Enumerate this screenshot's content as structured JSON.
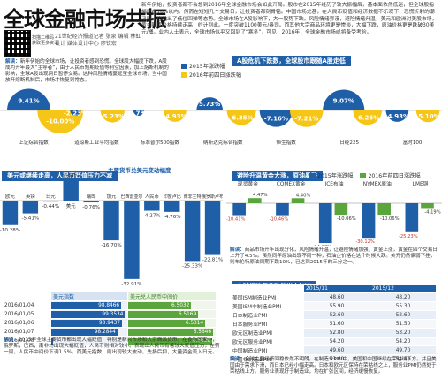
{
  "header": {
    "title": "全球金融市场共振",
    "credit_lines": [
      "21世纪经济报道记者 张泉 编辑 林虹",
      "设计 媒体设计中心 廖钦宏"
    ],
    "qr_caption": [
      "扫描二维码",
      "获取更多资讯"
    ],
    "intro": "新年伊始，投资者都不会想到2016年全球金融市场会如此开局。股市在2015年经历了较大振幅后，基本面依然低迷，但全球股指幅度在10%以内。然而在短短几个交易日，让投资者都刻骨铭。中国市场尤甚，在人民币贬值和经济数据不乐观下，恐慌折射的潮汛时，也结出了低位回弹等态势。全球市场在A股影响下，大一股势下跌。风险情绪弥漫，避险情绪升温，美元和欧洲对美股市场，黄金期货价格持续走高，约计到此。一度突破1100美元/盎司。而其他大宗商品环境更是惨淡，大幅下跌，原油价格更是跌破30美元/桶。业内人士表示，全球市场似乎又回到了“寒冬”，可见，2016年，全球金融市场或将备受考验。"
  },
  "section1": {
    "banner": "A股危机下跌数，全球股市跟随A股走低",
    "note_label": "解读：",
    "note": "新年伊始的全球市场，让投资者感到恐慌。全球股大幅度下跌，A股成为开年最大“主导者”，由于人民币短期贬值等利空因素，加上熔断机制的影响，全球A股出现两日暂停交易。这种风险情绪蔓延至全球市场，当中国放开熔断机制后，市场才恢复到常态。",
    "legend": [
      "2015年涨跌幅",
      "2016年前四日涨跌幅"
    ],
    "colors": {
      "y2015": "#1e5fa8",
      "y2016": "#f5c518"
    },
    "chart_data": {
      "type": "bar",
      "categories": [
        "上证综合指数",
        "道琼斯工业平均指数",
        "标准普尔500指数",
        "纳斯达克综合指数",
        "恒生指数",
        "日经225",
        "富时100"
      ],
      "series": [
        {
          "name": "2015年涨跌幅",
          "values": [
            9.41,
            -2.23,
            -0.73,
            5.73,
            -7.16,
            9.07,
            -4.93
          ]
        },
        {
          "name": "2016年前四日涨跌幅",
          "values": [
            -10.0,
            -5.23,
            -4.93,
            -6.35,
            -7.21,
            -6.25,
            -5.1
          ]
        }
      ],
      "labels": [
        "9.41%",
        "-10.00%",
        "-2.23%",
        "-5.23%",
        "-0.73%",
        "-4.93%",
        "5.73%",
        "-6.35%",
        "-7.16%",
        "-7.21%",
        "9.07%",
        "-6.25%",
        "-4.93%",
        "-5.10%"
      ]
    }
  },
  "section2": {
    "banner": "美元或继续走高，人民币贬值压力不减",
    "subtitle": "主要货币兑美元变动幅度",
    "note_label": "解读：",
    "note": "2015年全球主要货币都出现大幅贬值，特别是新兴市场和大宗商品货币。在食物国家中，俄罗斯，巴西，南非均出现大幅贬值，人民币则相对较小。表现出人民币有着较大贬值压力，在第一周，人民币中间价下调1.5%。而美元指数，则出现较大波动，先扬后抑，大量资金流入日元。",
    "colors": {
      "bar": "#1e5fa8"
    },
    "chart_data": {
      "type": "bar",
      "title": "主要货币兑美元变动幅度",
      "categories": [
        "欧元",
        "英镑",
        "日元",
        "美元",
        "瑞郎",
        "加元",
        "巴西雷亚尔",
        "人民币",
        "印度卢比",
        "南非兰特",
        "俄罗斯卢布"
      ],
      "values": [
        -10.28,
        -5.41,
        -0.44,
        9.34,
        -0.76,
        -16.7,
        -32.91,
        -4.27,
        -4.76,
        -25.33,
        -22.81
      ],
      "labels": [
        "-10.28%",
        "-5.41%",
        "-0.44%",
        "9.34%",
        "-0.76%",
        "-16.70%",
        "-32.91%",
        "-4.27%",
        "-4.76%",
        "-25.33%",
        "-22.81%"
      ]
    },
    "table": {
      "headers": [
        "",
        "美元指数",
        "美元兑人民币中间价"
      ],
      "rows": [
        {
          "date": "2016/01/04",
          "usd_index": "98.8466",
          "cny": "6.5032",
          "usd_frac": 0.92,
          "cny_frac": 0.72
        },
        {
          "date": "2016/01/05",
          "usd_index": "99.3534",
          "cny": "6.5169",
          "usd_frac": 0.97,
          "cny_frac": 0.8
        },
        {
          "date": "2016/01/06",
          "usd_index": "98.9437",
          "cny": "6.5314",
          "usd_frac": 0.93,
          "cny_frac": 0.88
        },
        {
          "date": "2016/01/07",
          "usd_index": "98.2844",
          "cny": "6.5646",
          "usd_frac": 0.87,
          "cny_frac": 0.97
        },
        {
          "date": "2016/01/08",
          "usd_index": "",
          "cny": "6.5636",
          "usd_frac": 0.0,
          "cny_frac": 0.96
        }
      ]
    }
  },
  "section3": {
    "banner": "避险升温黄金大涨，原油暴跌",
    "note_label": "解读：",
    "note": "商品市场开年出现分化，风险情绪升温，让避险情绪加强，黄金上涨，黄金在四个交易日上升了4.5%。虽然同年原油出现不同一种，石油企价格在这个时候大跌。美元仍然偏弱下挫，则布伦特原油同期下跌10%，已达到2015年的三分之一。",
    "legend": [
      "2015年涨跌幅",
      "2016年前四日涨跌幅"
    ],
    "colors": {
      "y2015": "#1e5fa8",
      "y2016": "#5aa53c"
    },
    "chart_data": {
      "type": "bar",
      "categories": [
        "现货黄金",
        "COMEX黄金",
        "ICE布油",
        "NYMEX原油",
        "LME铜"
      ],
      "series": [
        {
          "name": "2015年涨跌幅",
          "values": [
            -10.41,
            -10.46,
            -34.67,
            -30.12,
            -25.23
          ]
        },
        {
          "name": "2016年前四日涨跌幅",
          "values": [
            4.47,
            4.4,
            -10.06,
            -10.06,
            -4.19
          ]
        }
      ],
      "labels": [
        "-10.41%",
        "4.47%",
        "-10.46%",
        "4.40%",
        "-34.67%",
        "-10.06%",
        "-30.12%",
        "-10.06%",
        "-25.23%",
        "-4.19%"
      ]
    }
  },
  "section4": {
    "banner": "全球经济复苏动能尚未加速",
    "table": {
      "headers": [
        "",
        "2015/11",
        "2015/12"
      ],
      "rows": [
        {
          "label": "美国ISM制造业PMI",
          "a": "48.60",
          "b": "48.20"
        },
        {
          "label": "美国ISM非制造业PMI",
          "a": "55.90",
          "b": "55.30"
        },
        {
          "label": "日本制造业PMI",
          "a": "52.60",
          "b": "52.60"
        },
        {
          "label": "日本服务业PMI",
          "a": "51.60",
          "b": "51.50"
        },
        {
          "label": "欧元区制造业PMI",
          "a": "52.80",
          "b": "53.20"
        },
        {
          "label": "欧元区服务业PMI",
          "a": "54.20",
          "b": "54.20"
        },
        {
          "label": "中国制造业PMI",
          "a": "49.60",
          "b": "49.70"
        },
        {
          "label": "中国非制造业PMI",
          "a": "53.60",
          "b": "54.40"
        }
      ]
    },
    "note_label": "解读：",
    "note": "全球主要经济回稳依然不明朗。在制造业PMI中，美国和中国继续在荣枯线下方。并且美国由于需求下滑，而日本已经小幅走高。日本和欧元区保持在荣枯线之上，服务业PMI仍然处于荣枯线上方。服务业表现好于制造业，均在扩张区间，经济缓慢恢复。"
  }
}
